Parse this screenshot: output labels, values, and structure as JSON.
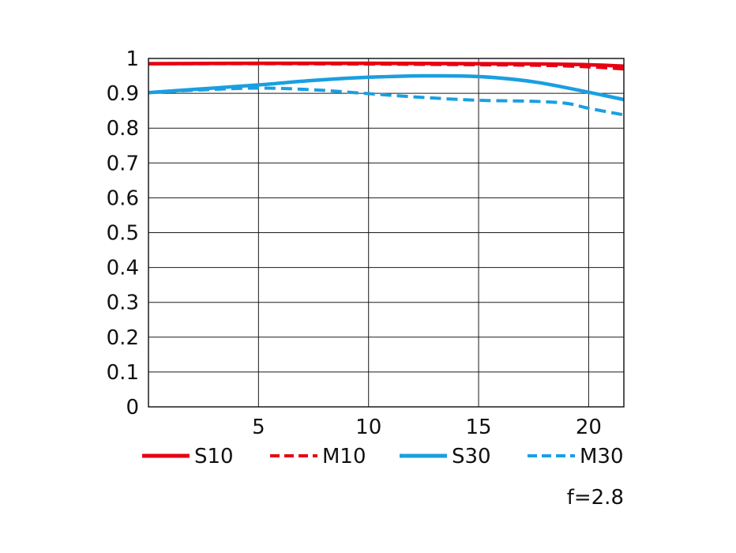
{
  "chart_data": {
    "type": "line",
    "title": "",
    "xlabel": "",
    "ylabel": "",
    "xlim": [
      0,
      21.6
    ],
    "ylim": [
      0,
      1
    ],
    "x_ticks": [
      5,
      10,
      15,
      20
    ],
    "x_tick_labels": [
      "5",
      "10",
      "15",
      "20"
    ],
    "y_ticks": [
      0,
      0.1,
      0.2,
      0.3,
      0.4,
      0.5,
      0.6,
      0.7,
      0.8,
      0.9,
      1
    ],
    "y_tick_labels": [
      "0",
      "0.1",
      "0.2",
      "0.3",
      "0.4",
      "0.5",
      "0.6",
      "0.7",
      "0.8",
      "0.9",
      "1"
    ],
    "grid": true,
    "legend_position": "bottom",
    "annotation": "f=2.8",
    "series": [
      {
        "name": "S10",
        "color": "#e60012",
        "style": "solid",
        "x": [
          0,
          5,
          10,
          15,
          18,
          20,
          21.6
        ],
        "y": [
          0.985,
          0.986,
          0.986,
          0.985,
          0.984,
          0.982,
          0.978
        ]
      },
      {
        "name": "M10",
        "color": "#e60012",
        "style": "dashed",
        "x": [
          0,
          5,
          10,
          15,
          18,
          20,
          21.6
        ],
        "y": [
          0.985,
          0.985,
          0.984,
          0.982,
          0.98,
          0.976,
          0.97
        ]
      },
      {
        "name": "S30",
        "color": "#1a9fe0",
        "style": "solid",
        "x": [
          0,
          2.5,
          5,
          7.5,
          10,
          12.5,
          15,
          17.5,
          20,
          21.6
        ],
        "y": [
          0.902,
          0.913,
          0.924,
          0.937,
          0.946,
          0.95,
          0.948,
          0.933,
          0.903,
          0.882
        ]
      },
      {
        "name": "M30",
        "color": "#1a9fe0",
        "style": "dashed",
        "x": [
          0,
          2.5,
          5,
          7.5,
          10,
          12.5,
          15,
          17.5,
          19,
          20,
          21.6
        ],
        "y": [
          0.902,
          0.91,
          0.915,
          0.91,
          0.899,
          0.888,
          0.88,
          0.877,
          0.871,
          0.857,
          0.838
        ]
      }
    ]
  }
}
